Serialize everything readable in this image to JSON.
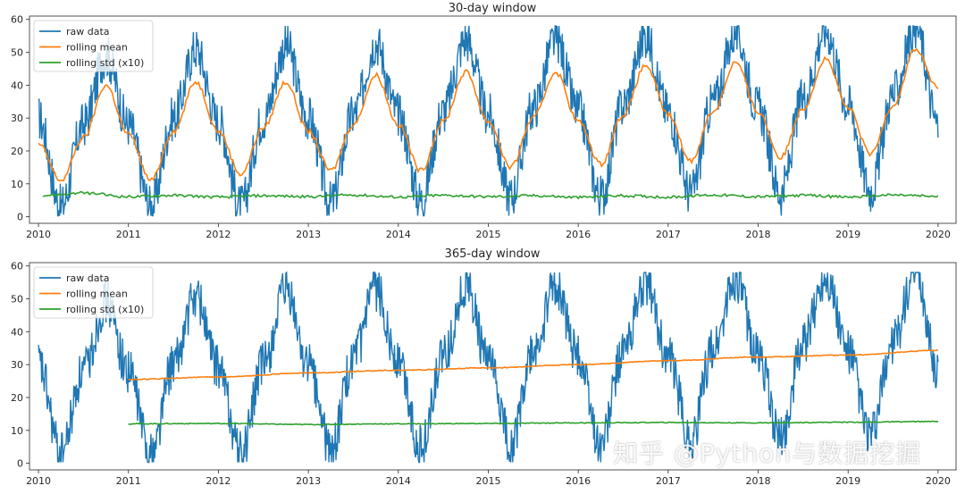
{
  "watermark": "知乎 @Python与数据挖掘",
  "colors": {
    "raw": "#1f77b4",
    "mean": "#ff7f0e",
    "std": "#2ca02c"
  },
  "chart_data": [
    {
      "type": "line",
      "title": "30-day window",
      "xlabel": "",
      "ylabel": "",
      "xlim": [
        2009.9,
        2020.2
      ],
      "ylim": [
        -2,
        61
      ],
      "xticks": [
        "2010",
        "2011",
        "2012",
        "2013",
        "2014",
        "2015",
        "2016",
        "2017",
        "2018",
        "2019",
        "2020"
      ],
      "yticks": [
        "0",
        "10",
        "20",
        "30",
        "40",
        "50",
        "60"
      ],
      "legend_position": "top-left",
      "grid": false,
      "series": [
        {
          "name": "raw data",
          "note": "daily values oscillating annually, amplitude about ±20 around the rolling mean, noise about ±7",
          "x": [
            2010.0,
            2010.25,
            2010.5,
            2010.75,
            2011.0,
            2011.25,
            2011.5,
            2011.75,
            2012.0,
            2012.25,
            2012.5,
            2012.75,
            2013.0,
            2013.25,
            2013.5,
            2013.75,
            2014.0,
            2014.25,
            2014.5,
            2014.75,
            2015.0,
            2015.25,
            2015.5,
            2015.75,
            2016.0,
            2016.25,
            2016.5,
            2016.75,
            2017.0,
            2017.25,
            2017.5,
            2017.75,
            2018.0,
            2018.25,
            2018.5,
            2018.75,
            2019.0,
            2019.25,
            2019.5,
            2019.75,
            2020.0
          ],
          "y": [
            30,
            3,
            28,
            49,
            28,
            3,
            30,
            51,
            29,
            3,
            30,
            52,
            30,
            4,
            31,
            53,
            31,
            5,
            32,
            54,
            31,
            6,
            33,
            54,
            32,
            6,
            34,
            55,
            32,
            7,
            35,
            56,
            33,
            7,
            36,
            57,
            34,
            8,
            37,
            58,
            28
          ]
        },
        {
          "name": "rolling mean",
          "x": [
            2010.0,
            2010.25,
            2010.5,
            2010.75,
            2011.0,
            2011.25,
            2011.5,
            2011.75,
            2012.0,
            2012.25,
            2012.5,
            2012.75,
            2013.0,
            2013.25,
            2013.5,
            2013.75,
            2014.0,
            2014.25,
            2014.5,
            2014.75,
            2015.0,
            2015.25,
            2015.5,
            2015.75,
            2016.0,
            2016.25,
            2016.5,
            2016.75,
            2017.0,
            2017.25,
            2017.5,
            2017.75,
            2018.0,
            2018.25,
            2018.5,
            2018.75,
            2019.0,
            2019.25,
            2019.5,
            2019.75,
            2020.0
          ],
          "y": [
            22,
            11,
            24,
            40,
            25,
            11,
            26,
            41,
            26,
            13,
            27,
            41,
            26,
            14,
            28,
            43,
            28,
            14,
            29,
            44,
            29,
            15,
            30,
            44,
            29,
            16,
            31,
            46,
            31,
            17,
            32,
            47,
            32,
            18,
            33,
            48,
            33,
            19,
            34,
            51,
            39
          ]
        },
        {
          "name": "rolling std (x10)",
          "x": [
            2010.05,
            2010.5,
            2011.0,
            2011.5,
            2012.0,
            2012.5,
            2013.0,
            2013.5,
            2014.0,
            2014.5,
            2015.0,
            2015.5,
            2016.0,
            2016.5,
            2017.0,
            2017.5,
            2018.0,
            2018.5,
            2019.0,
            2019.5,
            2020.0
          ],
          "y": [
            6.5,
            7.2,
            6.1,
            6.5,
            6.0,
            6.4,
            6.1,
            6.6,
            6.0,
            6.5,
            6.1,
            6.4,
            5.9,
            6.4,
            6.0,
            6.6,
            6.1,
            6.5,
            6.0,
            6.6,
            6.2
          ]
        }
      ]
    },
    {
      "type": "line",
      "title": "365-day window",
      "xlabel": "",
      "ylabel": "",
      "xlim": [
        2009.9,
        2020.2
      ],
      "ylim": [
        -2,
        61
      ],
      "xticks": [
        "2010",
        "2011",
        "2012",
        "2013",
        "2014",
        "2015",
        "2016",
        "2017",
        "2018",
        "2019",
        "2020"
      ],
      "yticks": [
        "0",
        "10",
        "20",
        "30",
        "40",
        "50",
        "60"
      ],
      "legend_position": "top-left",
      "grid": false,
      "series": [
        {
          "name": "raw data",
          "x": [
            2010.0,
            2010.25,
            2010.5,
            2010.75,
            2011.0,
            2011.25,
            2011.5,
            2011.75,
            2012.0,
            2012.25,
            2012.5,
            2012.75,
            2013.0,
            2013.25,
            2013.5,
            2013.75,
            2014.0,
            2014.25,
            2014.5,
            2014.75,
            2015.0,
            2015.25,
            2015.5,
            2015.75,
            2016.0,
            2016.25,
            2016.5,
            2016.75,
            2017.0,
            2017.25,
            2017.5,
            2017.75,
            2018.0,
            2018.25,
            2018.5,
            2018.75,
            2019.0,
            2019.25,
            2019.5,
            2019.75,
            2020.0
          ],
          "y": [
            30,
            3,
            28,
            49,
            28,
            3,
            30,
            51,
            29,
            3,
            30,
            52,
            30,
            4,
            31,
            53,
            31,
            5,
            32,
            54,
            31,
            6,
            33,
            54,
            32,
            6,
            34,
            55,
            32,
            7,
            35,
            56,
            33,
            7,
            36,
            57,
            34,
            8,
            37,
            58,
            28
          ]
        },
        {
          "name": "rolling mean",
          "x": [
            2011.0,
            2012.0,
            2013.0,
            2014.0,
            2015.0,
            2016.0,
            2017.0,
            2018.0,
            2019.0,
            2020.0
          ],
          "y": [
            25.5,
            26.2,
            27.5,
            28.3,
            29.0,
            30.0,
            31.2,
            32.3,
            32.9,
            34.3
          ]
        },
        {
          "name": "rolling std (x10)",
          "x": [
            2011.0,
            2012.0,
            2013.0,
            2014.0,
            2015.0,
            2016.0,
            2017.0,
            2018.0,
            2019.0,
            2020.0
          ],
          "y": [
            12.0,
            12.1,
            11.8,
            12.0,
            12.1,
            12.3,
            12.4,
            12.3,
            12.5,
            12.7
          ]
        }
      ]
    }
  ]
}
